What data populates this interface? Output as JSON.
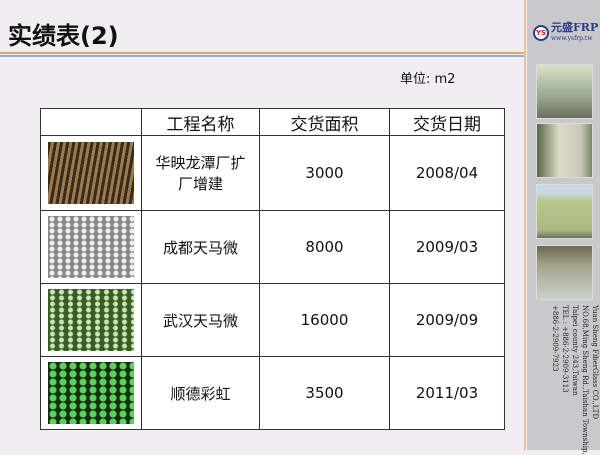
{
  "title": "实绩表(2)",
  "unit": "单位: m2",
  "logo": {
    "badge": "YS",
    "name": "元盛FRP",
    "url": "www.ysfrp.tw"
  },
  "address": [
    "Yuan Sheng FiberGlass CO.,LTD",
    "NO.68,Ming Sheng Rd.,Taishan Township,",
    "Taipei county 243,Taiwan",
    "TEL : +886-2-2909-3113",
    "+886-2-2909-7923"
  ],
  "table": {
    "headers": [
      "",
      "工程名称",
      "交货面积",
      "交货日期"
    ],
    "rows": [
      {
        "name": "华映龙潭厂扩厂增建",
        "area": "3000",
        "date": "2008/04"
      },
      {
        "name": "成都天马微",
        "area": "8000",
        "date": "2009/03"
      },
      {
        "name": "武汉天马微",
        "area": "16000",
        "date": "2009/09"
      },
      {
        "name": "顺德彩虹",
        "area": "3500",
        "date": "2011/03"
      }
    ]
  }
}
